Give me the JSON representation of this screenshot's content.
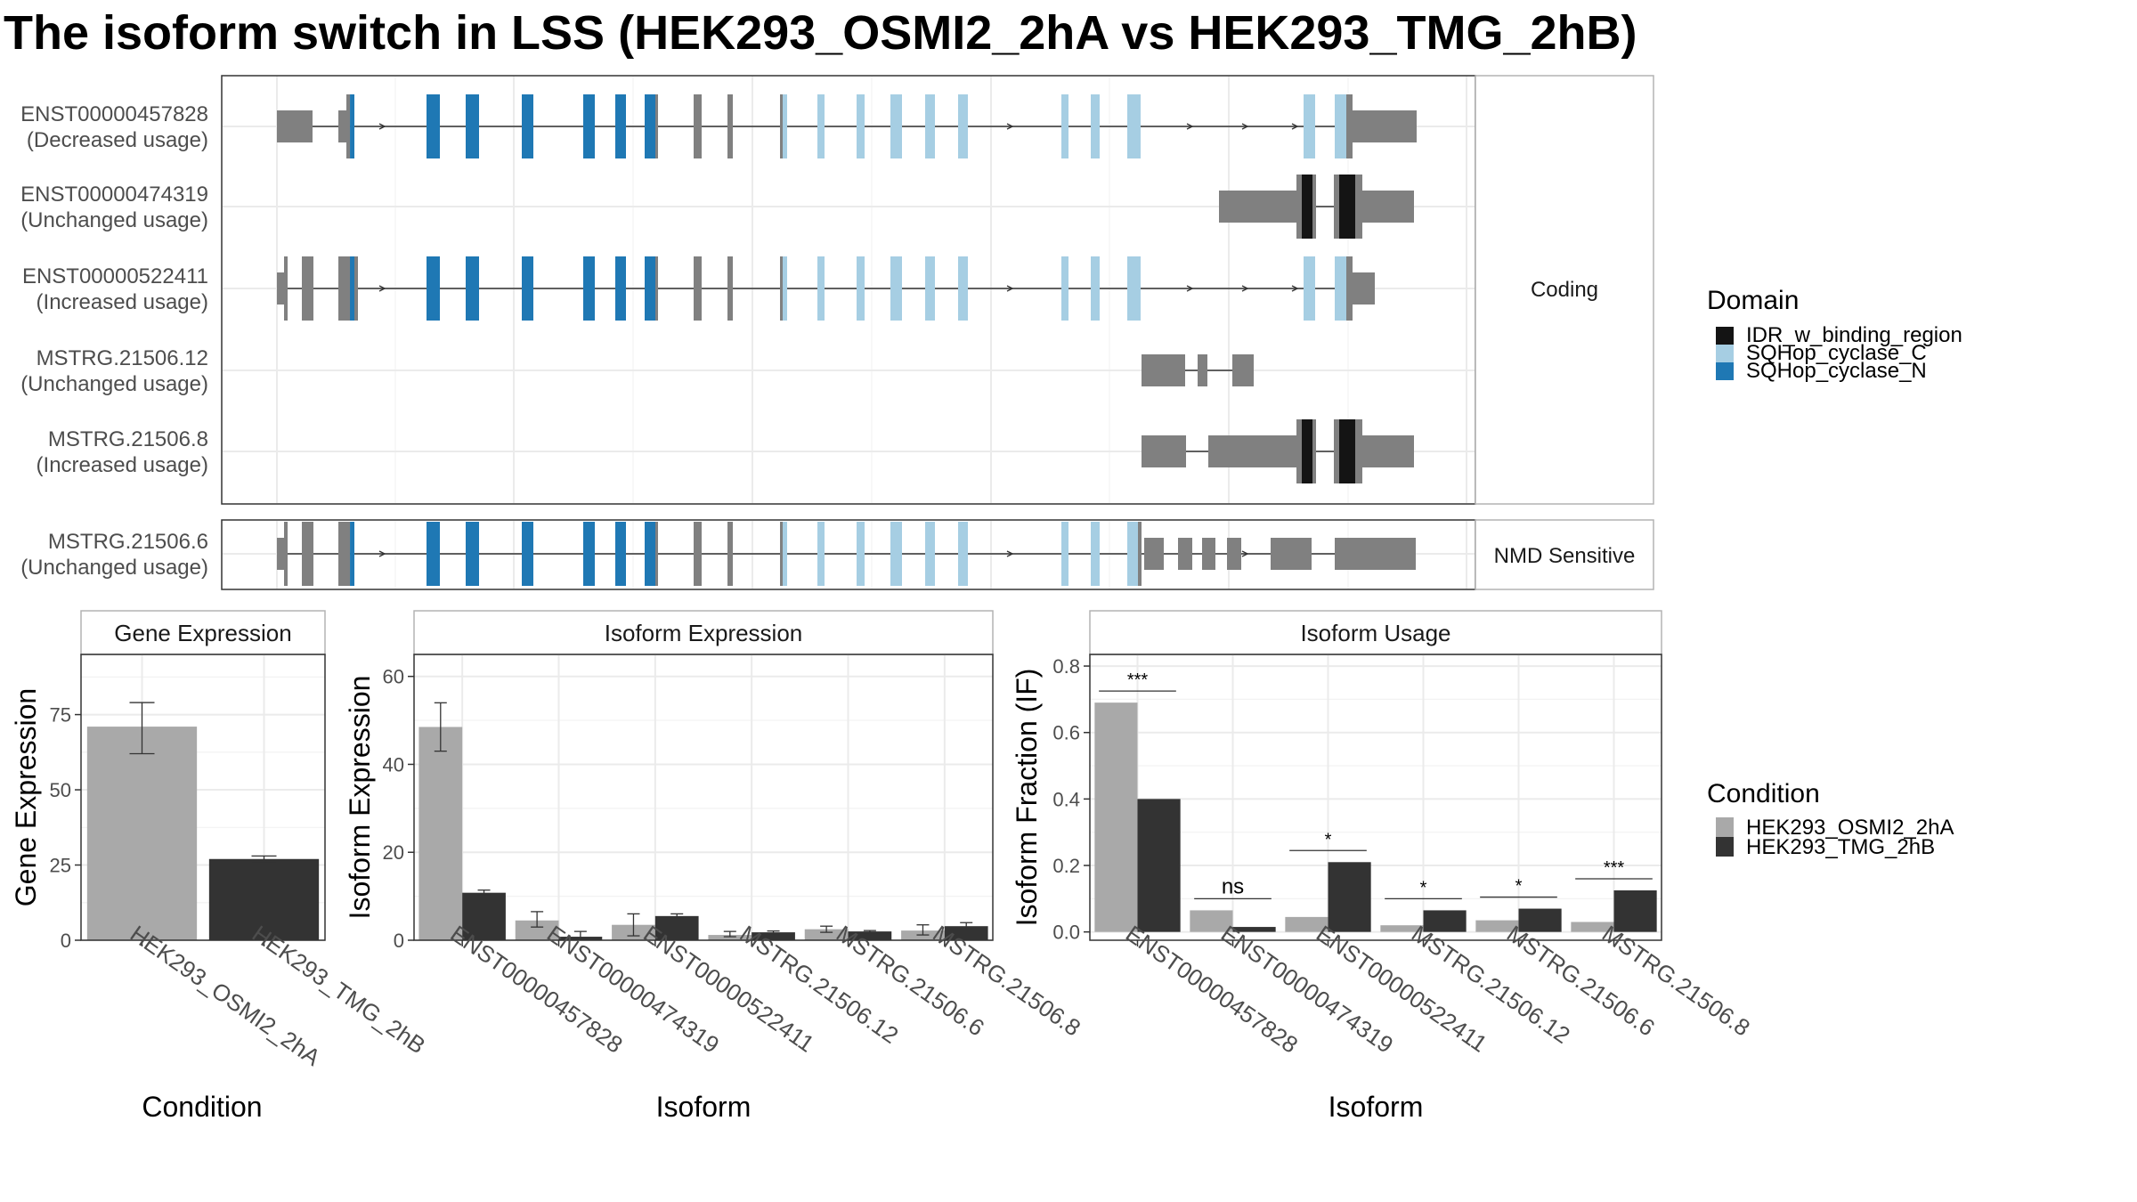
{
  "title": "The isoform switch in LSS (HEK293_OSMI2_2hA vs HEK293_TMG_2hB)",
  "transcript_panel": {
    "facet_coding": "Coding",
    "facet_nmd": "NMD Sensitive",
    "colors": {
      "exon": "#808080",
      "IDR_w_binding_region": "#141414",
      "SQHop_cyclase_C": "#a6cee3",
      "SQHop_cyclase_N": "#1f78b4"
    },
    "transcripts": [
      {
        "id": "ENST00000457828",
        "usage": "(Decreased usage)",
        "group": "coding"
      },
      {
        "id": "ENST00000474319",
        "usage": "(Unchanged usage)",
        "group": "coding"
      },
      {
        "id": "ENST00000522411",
        "usage": "(Increased usage)",
        "group": "coding"
      },
      {
        "id": "MSTRG.21506.12",
        "usage": "(Unchanged usage)",
        "group": "coding"
      },
      {
        "id": "MSTRG.21506.8",
        "usage": "(Increased usage)",
        "group": "coding"
      },
      {
        "id": "MSTRG.21506.6",
        "usage": "(Unchanged usage)",
        "group": "nmd"
      }
    ]
  },
  "legend_domain": {
    "title": "Domain",
    "items": [
      {
        "label": "IDR_w_binding_region",
        "color": "#141414"
      },
      {
        "label": "SQHop_cyclase_C",
        "color": "#a6cee3"
      },
      {
        "label": "SQHop_cyclase_N",
        "color": "#1f78b4"
      }
    ]
  },
  "legend_condition": {
    "title": "Condition",
    "items": [
      {
        "label": "HEK293_OSMI2_2hA",
        "color": "#a9a9a9"
      },
      {
        "label": "HEK293_TMG_2hB",
        "color": "#333333"
      }
    ]
  },
  "chart_data": [
    {
      "type": "bar",
      "title": "Gene Expression",
      "xlabel": "Condition",
      "ylabel": "Gene Expression",
      "ylim": [
        0,
        95
      ],
      "yticks": [
        0,
        25,
        50,
        75
      ],
      "grid": true,
      "categories": [
        "HEK293_OSMI2_2hA",
        "HEK293_TMG_2hB"
      ],
      "values": [
        71,
        27
      ],
      "errors": [
        [
          62,
          79
        ],
        [
          26,
          28
        ]
      ]
    },
    {
      "type": "bar",
      "title": "Isoform Expression",
      "xlabel": "Isoform",
      "ylabel": "Isoform Expression",
      "ylim": [
        0,
        65
      ],
      "yticks": [
        0,
        20,
        40,
        60
      ],
      "grid": true,
      "categories": [
        "ENST00000457828",
        "ENST00000474319",
        "ENST00000522411",
        "MSTRG.21506.12",
        "MSTRG.21506.6",
        "MSTRG.21506.8"
      ],
      "series": [
        {
          "name": "HEK293_OSMI2_2hA",
          "values": [
            48.5,
            4.5,
            3.5,
            1.2,
            2.5,
            2.2
          ],
          "errors": [
            [
              43,
              54
            ],
            [
              3,
              6.5
            ],
            [
              1,
              6
            ],
            [
              0.8,
              2
            ],
            [
              1.8,
              3.2
            ],
            [
              1.2,
              3.5
            ]
          ]
        },
        {
          "name": "HEK293_TMG_2hB",
          "values": [
            10.8,
            0.8,
            5.5,
            1.8,
            2.0,
            3.2
          ],
          "errors": [
            [
              10.3,
              11.4
            ],
            [
              0.2,
              2
            ],
            [
              5,
              6
            ],
            [
              1.5,
              2.1
            ],
            [
              1.8,
              2.2
            ],
            [
              2.7,
              4
            ]
          ]
        }
      ]
    },
    {
      "type": "bar",
      "title": "Isoform Usage",
      "xlabel": "Isoform",
      "ylabel": "Isoform Fraction (IF)",
      "ylim": [
        -0.025,
        0.835
      ],
      "yticks": [
        0.0,
        0.2,
        0.4,
        0.6,
        0.8
      ],
      "ytick_labels": [
        "0.0",
        "0.2",
        "0.4",
        "0.6",
        "0.8"
      ],
      "grid": true,
      "categories": [
        "ENST00000457828",
        "ENST00000474319",
        "ENST00000522411",
        "MSTRG.21506.12",
        "MSTRG.21506.6",
        "MSTRG.21506.8"
      ],
      "series": [
        {
          "name": "HEK293_OSMI2_2hA",
          "values": [
            0.69,
            0.065,
            0.045,
            0.02,
            0.035,
            0.03
          ]
        },
        {
          "name": "HEK293_TMG_2hB",
          "values": [
            0.4,
            0.015,
            0.21,
            0.065,
            0.07,
            0.125
          ]
        }
      ],
      "significance": [
        "***",
        "ns",
        "*",
        "*",
        "*",
        "***"
      ]
    }
  ]
}
